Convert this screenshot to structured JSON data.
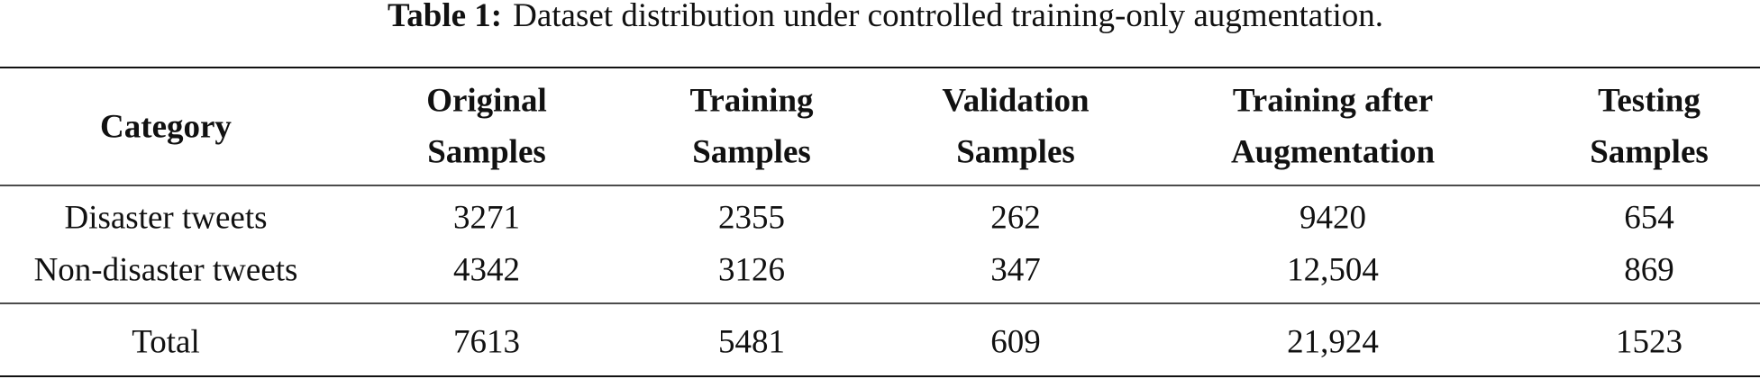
{
  "table": {
    "caption": {
      "label": "Table 1:",
      "text": "Dataset distribution under controlled training-only augmentation."
    },
    "header": [
      [
        "Category"
      ],
      [
        "Original",
        "Samples"
      ],
      [
        "Training",
        "Samples"
      ],
      [
        "Validation",
        "Samples"
      ],
      [
        "Training after",
        "Augmentation"
      ],
      [
        "Testing",
        "Samples"
      ]
    ],
    "rows": [
      [
        "Disaster tweets",
        "3271",
        "2355",
        "262",
        "9420",
        "654"
      ],
      [
        "Non-disaster tweets",
        "4342",
        "3126",
        "347",
        "12,504",
        "869"
      ]
    ],
    "total": [
      "Total",
      "7613",
      "5481",
      "609",
      "21,924",
      "1523"
    ]
  }
}
